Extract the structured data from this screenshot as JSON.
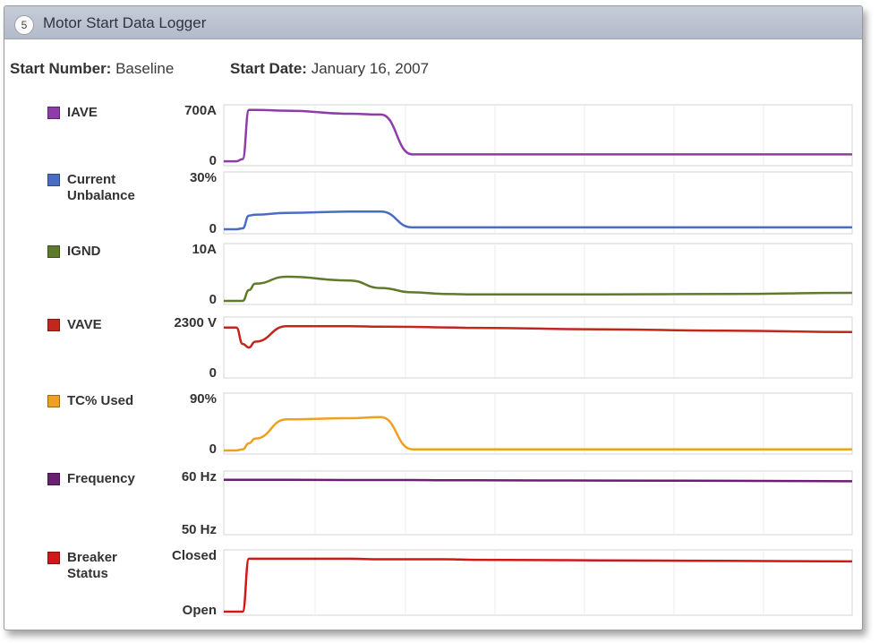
{
  "header": {
    "step_number": "5",
    "title": "Motor Start Data Logger"
  },
  "meta": {
    "start_number_label": "Start Number:",
    "start_number_value": "Baseline",
    "start_date_label": "Start Date:",
    "start_date_value": "January 16, 2007"
  },
  "chart_data": {
    "type": "line",
    "x": [
      0,
      2,
      3,
      4,
      5,
      10,
      20,
      25,
      30,
      35,
      40,
      60,
      80,
      100
    ],
    "series": [
      {
        "name": "IAVE",
        "color": "#8e3ca8",
        "legend_label": "IAVE",
        "ymin_label": "0",
        "ymax_label": "700A",
        "ylim": [
          0,
          700
        ],
        "values": [
          10,
          10,
          40,
          680,
          680,
          670,
          630,
          620,
          100,
          100,
          100,
          100,
          100,
          100
        ]
      },
      {
        "name": "Current Unbalance",
        "color": "#4a6dc4",
        "legend_label": "Current\nUnbalance",
        "ymin_label": "0",
        "ymax_label": "30%",
        "ylim": [
          0,
          30
        ],
        "values": [
          0.5,
          0.5,
          1,
          8,
          8.5,
          9.5,
          10.2,
          10.2,
          1.5,
          1.5,
          1.5,
          1.5,
          1.5,
          1.5
        ]
      },
      {
        "name": "IGND",
        "color": "#5e7a2a",
        "legend_label": "IGND",
        "ymin_label": "0",
        "ymax_label": "10A",
        "ylim": [
          0,
          10
        ],
        "values": [
          0,
          0,
          0,
          2,
          3.2,
          4.5,
          3.8,
          2.4,
          1.6,
          1.3,
          1.2,
          1.2,
          1.3,
          1.5
        ]
      },
      {
        "name": "VAVE",
        "color": "#c0281e",
        "legend_label": "VAVE",
        "ymin_label": "0",
        "ymax_label": "2300 V",
        "ylim": [
          0,
          2300
        ],
        "values": [
          2000,
          2000,
          1300,
          1150,
          1400,
          2060,
          2060,
          2040,
          2030,
          2010,
          1990,
          1930,
          1870,
          1810
        ]
      },
      {
        "name": "TC% Used",
        "color": "#f0a020",
        "legend_label": "TC% Used",
        "ymin_label": "0",
        "ymax_label": "90%",
        "ylim": [
          0,
          90
        ],
        "values": [
          0,
          0,
          2,
          12,
          20,
          52,
          54,
          56,
          2,
          2,
          2,
          2,
          2,
          2
        ]
      },
      {
        "name": "Frequency",
        "color": "#6a2070",
        "legend_label": "Frequency",
        "ymin_label": "50 Hz",
        "ymax_label": "60 Hz",
        "ylim": [
          50,
          61
        ],
        "values": [
          60,
          60,
          60,
          60,
          60,
          60,
          59.95,
          59.95,
          59.95,
          59.9,
          59.9,
          59.85,
          59.8,
          59.7
        ]
      },
      {
        "name": "Breaker Status",
        "color": "#d01818",
        "legend_label": "Breaker\nStatus",
        "ymin_label": "Open",
        "ymax_label": "Closed",
        "ylim": [
          0,
          1.1
        ],
        "values": [
          0,
          0,
          0,
          1,
          1,
          1,
          1,
          0.99,
          0.99,
          0.99,
          0.98,
          0.97,
          0.96,
          0.95
        ]
      }
    ],
    "xlim": [
      0,
      100
    ],
    "grid": true
  }
}
